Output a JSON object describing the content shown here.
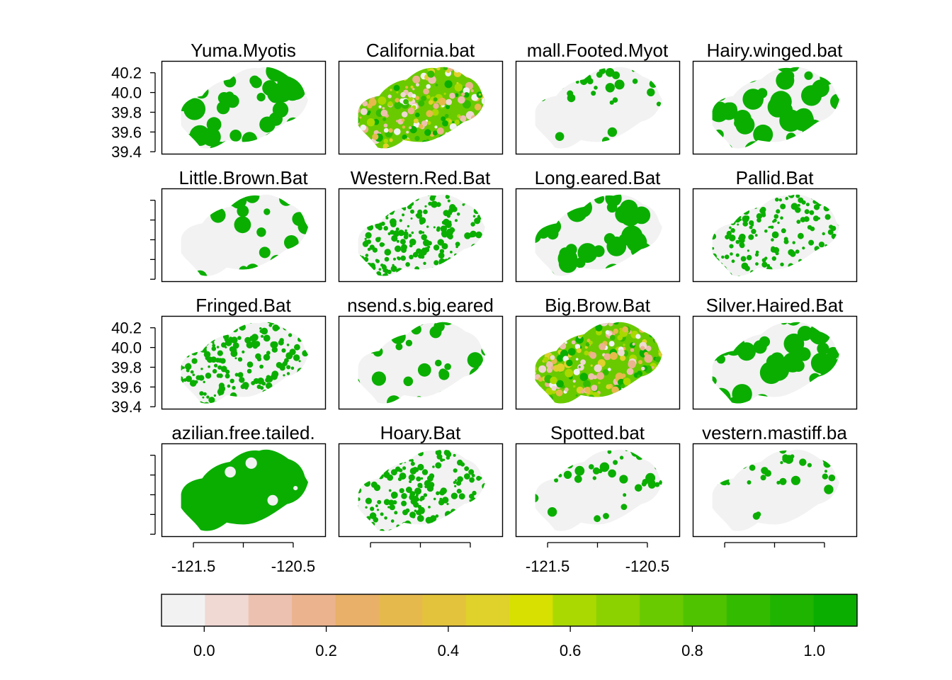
{
  "chart_data": {
    "type": "heatmap",
    "description_free": true,
    "panels": [
      {
        "title": "Yuma.Myotis",
        "map_tone": "mostly_high"
      },
      {
        "title": "California.bat",
        "map_tone": "mixed"
      },
      {
        "title": "mall.Footed.Myot",
        "map_tone": "sparse"
      },
      {
        "title": "Hairy.winged.bat",
        "map_tone": "mostly_high"
      },
      {
        "title": "Little.Brown.Bat",
        "map_tone": "patchy"
      },
      {
        "title": "Western.Red.Bat",
        "map_tone": "speckled"
      },
      {
        "title": "Long.eared.Bat",
        "map_tone": "mostly_high"
      },
      {
        "title": "Pallid.Bat",
        "map_tone": "speckled"
      },
      {
        "title": "Fringed.Bat",
        "map_tone": "speckled"
      },
      {
        "title": "nsend.s.big.eared",
        "map_tone": "patchy"
      },
      {
        "title": "Big.Brow.Bat",
        "map_tone": "mixed"
      },
      {
        "title": "Silver.Haired.Bat",
        "map_tone": "mostly_high"
      },
      {
        "title": "azilian.free.tailed.",
        "map_tone": "solid"
      },
      {
        "title": "Hoary.Bat",
        "map_tone": "speckled"
      },
      {
        "title": "Spotted.bat",
        "map_tone": "sparse"
      },
      {
        "title": "vestern.mastiff.ba",
        "map_tone": "sparse"
      }
    ],
    "y_ticks": [
      "40.2",
      "40.0",
      "39.8",
      "39.6",
      "39.4"
    ],
    "y_tick_values": [
      40.2,
      40.0,
      39.8,
      39.6,
      39.4
    ],
    "ylim": [
      39.38,
      40.32
    ],
    "x_tick_labels": [
      "-121.5",
      "-120.5"
    ],
    "x_tick_values": [
      -121.5,
      -121.0,
      -120.5
    ],
    "xlim": [
      -121.82,
      -120.18
    ],
    "colorbar": {
      "breaks_labels": [
        "0.0",
        "0.2",
        "0.4",
        "0.6",
        "0.8",
        "1.0"
      ],
      "break_values": [
        0.0,
        0.2,
        0.4,
        0.6,
        0.8,
        1.0
      ],
      "range": [
        -0.07,
        1.07
      ],
      "colors": [
        "#f2f2f2",
        "#f0d8d3",
        "#edc1b0",
        "#ebb38e",
        "#e8b068",
        "#e6b94d",
        "#e3c33c",
        "#e0d12b",
        "#d7e000",
        "#a9d900",
        "#8cd200",
        "#69ca00",
        "#4fc300",
        "#33bb00",
        "#1eb400",
        "#0aae00"
      ]
    }
  }
}
